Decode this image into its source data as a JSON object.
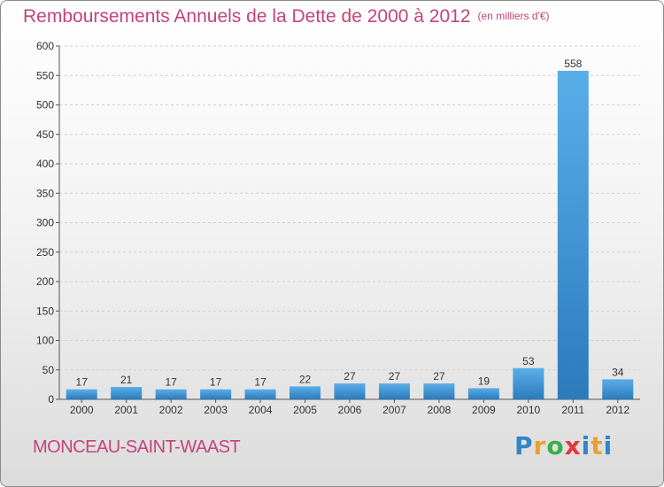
{
  "header": {
    "title": "Remboursements Annuels de la Dette de 2000 à 2012",
    "unit": "(en milliers d'€)"
  },
  "footer": {
    "commune": "MONCEAU-SAINT-WAAST",
    "logo": [
      "P",
      "r",
      "o",
      "x",
      "i",
      "t",
      "i"
    ]
  },
  "colors": {
    "title": "#c4437c",
    "bar_light": "#5aaee8",
    "bar_dark": "#2b7bbd",
    "grid": "#d0d0d0"
  },
  "chart_data": {
    "type": "bar",
    "title": "Remboursements Annuels de la Dette de 2000 à 2012",
    "ylabel": "",
    "xlabel": "",
    "categories": [
      "2000",
      "2001",
      "2002",
      "2003",
      "2004",
      "2005",
      "2006",
      "2007",
      "2008",
      "2009",
      "2010",
      "2011",
      "2012"
    ],
    "values": [
      17,
      21,
      17,
      17,
      17,
      22,
      27,
      27,
      27,
      19,
      53,
      558,
      34
    ],
    "ylim": [
      0,
      600
    ],
    "yticks": [
      0,
      50,
      100,
      150,
      200,
      250,
      300,
      350,
      400,
      450,
      500,
      550,
      600
    ],
    "grid": true,
    "legend": "none"
  }
}
